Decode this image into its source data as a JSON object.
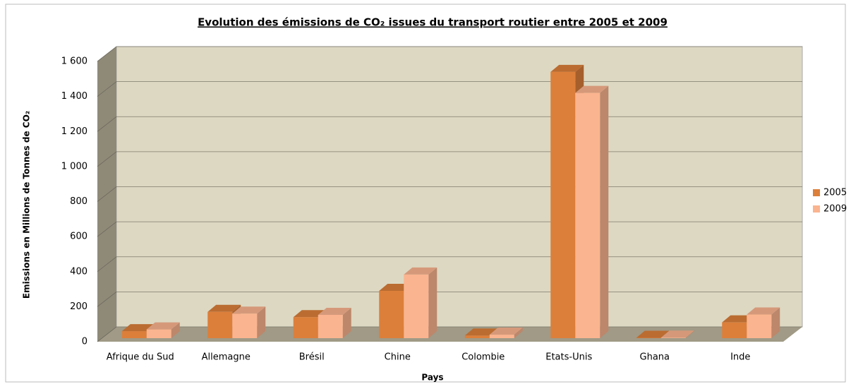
{
  "chart_data": {
    "type": "bar3d",
    "title": "Evolution des émissions de CO₂ issues du transport routier entre 2005 et 2009",
    "x_label": "Pays",
    "y_label": "Emissions en Millions de Tonnes de CO₂",
    "categories": [
      "Afrique du Sud",
      "Allemagne",
      "Brésil",
      "Chine",
      "Colombie",
      "Etats-Unis",
      "Ghana",
      "Inde"
    ],
    "series": [
      {
        "name": "2005",
        "color": "#dc7f3a",
        "values": [
          40,
          150,
          120,
          270,
          15,
          1520,
          2,
          90
        ]
      },
      {
        "name": "2009",
        "color": "#fab48f",
        "values": [
          50,
          140,
          133,
          363,
          20,
          1400,
          3,
          135
        ]
      }
    ],
    "ylim": [
      0,
      1600
    ],
    "yticks": [
      0,
      200,
      400,
      600,
      800,
      {
        "value": 1000,
        "label": "1 000"
      },
      {
        "value": 1200,
        "label": "1 200"
      },
      {
        "value": 1400,
        "label": "1 400"
      },
      {
        "value": 1600,
        "label": "1 600"
      }
    ],
    "grid": true,
    "legend": "right"
  }
}
